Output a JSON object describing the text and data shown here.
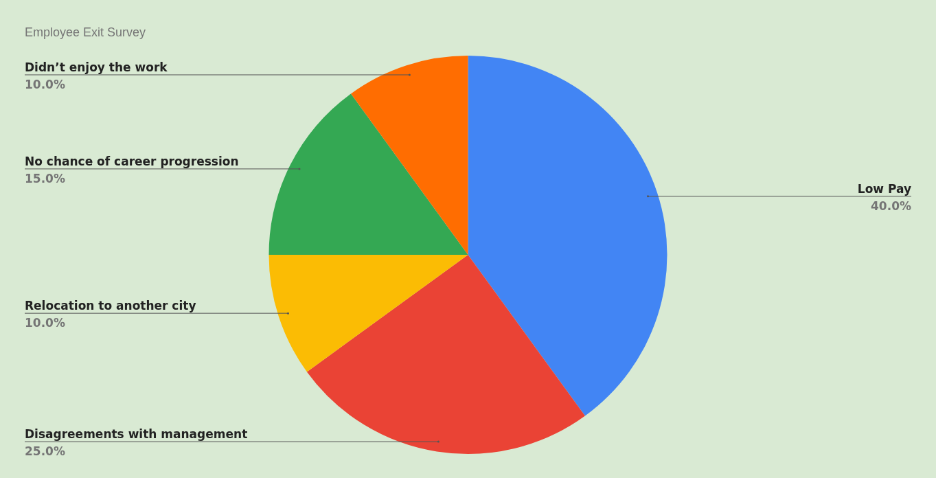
{
  "chart_data": {
    "type": "pie",
    "title": "Employee Exit Survey",
    "categories": [
      "Low Pay",
      "Disagreements with management",
      "Relocation to another city",
      "No chance of career progression",
      "Didn’t enjoy the work"
    ],
    "values": [
      40,
      25,
      10,
      15,
      10
    ],
    "colors": [
      "#4285f4",
      "#ea4335",
      "#fbbc04",
      "#34a853",
      "#ff6d01"
    ],
    "value_labels": [
      "40.0%",
      "25.0%",
      "10.0%",
      "15.0%",
      "10.0%"
    ],
    "legend": false
  }
}
